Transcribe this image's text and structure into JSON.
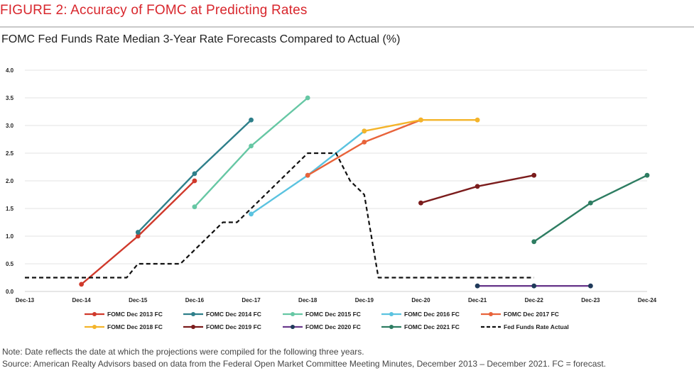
{
  "header": {
    "figure_title": "FIGURE 2: Accuracy of FOMC at Predicting Rates",
    "subtitle": "FOMC Fed Funds Rate Median 3-Year Rate Forecasts Compared to Actual (%)"
  },
  "footer": {
    "note": "Note: Date reflects the date at which the projections were compiled for the following three years.",
    "source": "Source: American Realty Advisors based on data from the Federal Open Market Committee Meeting Minutes, December 2013 – December 2021. FC = forecast."
  },
  "chart_data": {
    "type": "line",
    "title": "FOMC Fed Funds Rate Median 3-Year Rate Forecasts Compared to Actual (%)",
    "xlabel": "",
    "ylabel": "",
    "ylim": [
      0,
      4.0
    ],
    "grid": true,
    "legend_position": "bottom",
    "x_categories": [
      "Dec-13",
      "Dec-14",
      "Dec-15",
      "Dec-16",
      "Dec-17",
      "Dec-18",
      "Dec-19",
      "Dec-20",
      "Dec-21",
      "Dec-22",
      "Dec-23",
      "Dec-24"
    ],
    "y_ticks": [
      "0.0",
      "0.5",
      "1.0",
      "1.5",
      "2.0",
      "2.5",
      "3.0",
      "3.5",
      "4.0"
    ],
    "series": [
      {
        "name": "FOMC Dec 2013 FC",
        "color": "#d0392b",
        "x": [
          1,
          2,
          3
        ],
        "values": [
          0.13,
          1.0,
          2.0
        ]
      },
      {
        "name": "FOMC Dec 2014 FC",
        "color": "#2e7f8a",
        "x": [
          2,
          3,
          4
        ],
        "values": [
          1.07,
          2.13,
          3.1
        ]
      },
      {
        "name": "FOMC Dec 2015 FC",
        "color": "#66c7a4",
        "x": [
          3,
          4,
          5
        ],
        "values": [
          1.53,
          2.63,
          3.5
        ]
      },
      {
        "name": "FOMC Dec 2016 FC",
        "color": "#5bc3e0",
        "x": [
          4,
          5,
          6
        ],
        "values": [
          1.4,
          2.1,
          2.9
        ]
      },
      {
        "name": "FOMC Dec 2017 FC",
        "color": "#e8633a",
        "x": [
          5,
          6,
          7
        ],
        "values": [
          2.1,
          2.7,
          3.1
        ]
      },
      {
        "name": "FOMC Dec 2018 FC",
        "color": "#f4b42a",
        "x": [
          6,
          7,
          8
        ],
        "values": [
          2.9,
          3.1,
          3.1
        ]
      },
      {
        "name": "FOMC Dec 2019 FC",
        "color": "#7b1c1c",
        "x": [
          7,
          8,
          9
        ],
        "values": [
          1.6,
          1.9,
          2.1
        ]
      },
      {
        "name": "FOMC Dec 2020 FC",
        "color": "#6a3a8c",
        "marker_color": "#1f3a5a",
        "x": [
          8,
          9,
          10
        ],
        "values": [
          0.1,
          0.1,
          0.1
        ]
      },
      {
        "name": "FOMC Dec 2021 FC",
        "color": "#2e7d62",
        "x": [
          9,
          10,
          11
        ],
        "values": [
          0.9,
          1.6,
          2.1
        ]
      },
      {
        "name": "Fed Funds Rate Actual",
        "color": "#111111",
        "dashed": true,
        "x": [
          0,
          1.8,
          2.0,
          2.75,
          3.0,
          3.5,
          3.75,
          4.0,
          4.25,
          4.5,
          4.75,
          5.0,
          5.5,
          5.75,
          6.0,
          6.25,
          6.5,
          6.75,
          7.0,
          7.25,
          7.5,
          8.0,
          9.0
        ],
        "values": [
          0.25,
          0.25,
          0.5,
          0.5,
          0.75,
          1.25,
          1.25,
          1.5,
          1.75,
          2.0,
          2.25,
          2.5,
          2.5,
          2.0,
          1.75,
          0.25,
          0.25,
          0.25,
          0.25,
          0.25,
          0.25,
          0.25,
          0.25
        ]
      }
    ]
  }
}
